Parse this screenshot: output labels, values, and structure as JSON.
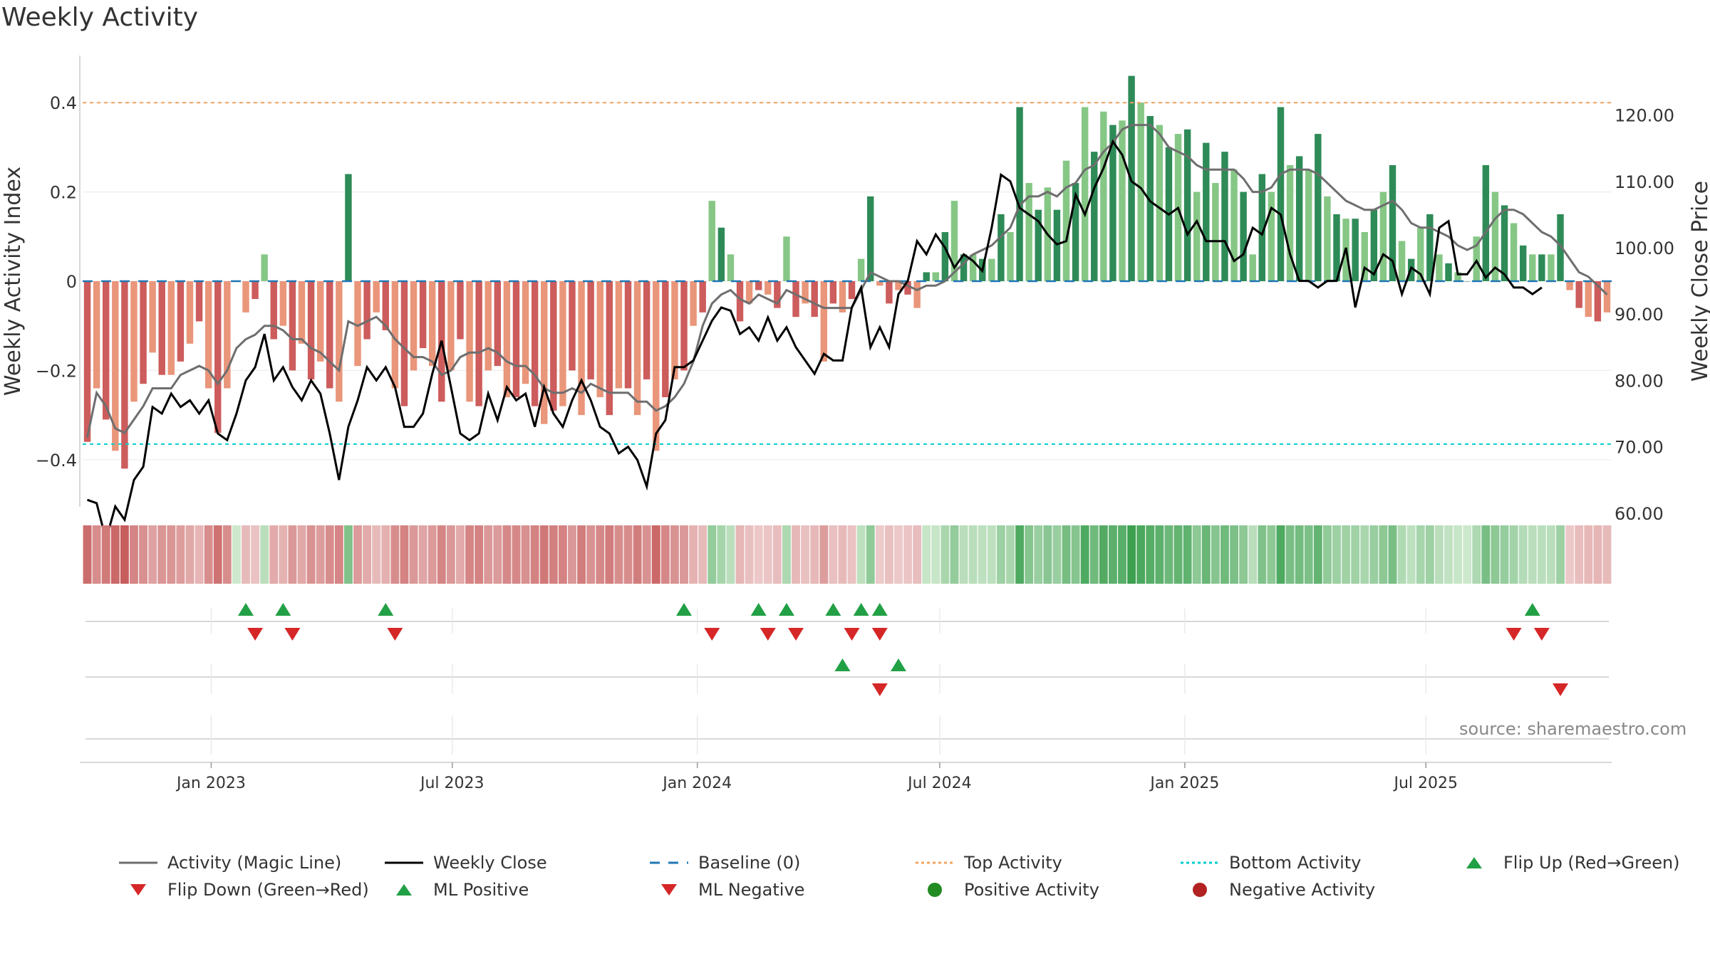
{
  "title": "Weekly Activity",
  "source": "source: sharemaestro.com",
  "colors": {
    "pos_dark": "#2e8b57",
    "pos_light": "#86c786",
    "neg_dark": "#cd5c5c",
    "neg_light": "#e9967a",
    "magic_line": "#6e6e6e",
    "close_line": "#000000",
    "baseline": "#1f77b4",
    "top_line": "#f4a460",
    "bottom_line": "#00ced1",
    "flip_up": "#22a045",
    "flip_down": "#d62728"
  },
  "chart_data": {
    "type": "bar",
    "x_start": "2022-09-30",
    "xlabel": "",
    "ylabel": "Weekly Activity Index",
    "y2label": "Weekly Close Price",
    "ylim": [
      -0.5,
      0.5
    ],
    "y2lim": [
      50,
      120
    ],
    "yticks": [
      {
        "v": 0.4,
        "label": "0.4"
      },
      {
        "v": 0.2,
        "label": "0.2"
      },
      {
        "v": 0,
        "label": "0"
      },
      {
        "v": -0.2,
        "label": "−0.2"
      },
      {
        "v": -0.4,
        "label": "−0.4"
      }
    ],
    "y2ticks": [
      {
        "v": 120,
        "label": "120.00"
      },
      {
        "v": 110,
        "label": "110.00"
      },
      {
        "v": 100,
        "label": "100.00"
      },
      {
        "v": 90,
        "label": "90.00"
      },
      {
        "v": 80,
        "label": "80.00"
      },
      {
        "v": 70,
        "label": "70.00"
      },
      {
        "v": 60,
        "label": "60.00"
      }
    ],
    "xticks": [
      {
        "date": "2023-01-01",
        "label": "Jan 2023"
      },
      {
        "date": "2023-07-01",
        "label": "Jul 2023"
      },
      {
        "date": "2024-01-01",
        "label": "Jan 2024"
      },
      {
        "date": "2024-07-01",
        "label": "Jul 2024"
      },
      {
        "date": "2025-01-01",
        "label": "Jan 2025"
      },
      {
        "date": "2025-07-01",
        "label": "Jul 2025"
      }
    ],
    "top_activity": 0.4,
    "bottom_activity": -0.365,
    "activity": [
      -0.36,
      -0.24,
      -0.31,
      -0.38,
      -0.42,
      -0.27,
      -0.23,
      -0.16,
      -0.21,
      -0.21,
      -0.18,
      -0.14,
      -0.09,
      -0.24,
      -0.34,
      -0.24,
      0.0,
      -0.07,
      -0.04,
      0.06,
      -0.13,
      -0.1,
      -0.2,
      -0.14,
      -0.22,
      -0.18,
      -0.24,
      -0.27,
      0.24,
      -0.19,
      -0.13,
      -0.07,
      -0.11,
      -0.24,
      -0.28,
      -0.2,
      -0.15,
      -0.19,
      -0.27,
      -0.2,
      -0.13,
      -0.27,
      -0.28,
      -0.2,
      -0.19,
      -0.26,
      -0.26,
      -0.23,
      -0.28,
      -0.32,
      -0.29,
      -0.28,
      -0.2,
      -0.3,
      -0.22,
      -0.26,
      -0.3,
      -0.24,
      -0.24,
      -0.3,
      -0.22,
      -0.38,
      -0.26,
      -0.22,
      -0.2,
      -0.1,
      -0.07,
      0.18,
      0.12,
      0.06,
      -0.09,
      -0.05,
      -0.02,
      -0.03,
      -0.06,
      0.1,
      -0.08,
      -0.05,
      -0.08,
      -0.18,
      -0.05,
      -0.07,
      -0.04,
      0.05,
      0.19,
      -0.01,
      -0.05,
      -0.02,
      -0.03,
      -0.06,
      0.02,
      0.02,
      0.11,
      0.18,
      0.06,
      0.06,
      0.05,
      0.05,
      0.15,
      0.11,
      0.39,
      0.22,
      0.16,
      0.21,
      0.16,
      0.27,
      0.22,
      0.39,
      0.29,
      0.38,
      0.35,
      0.36,
      0.46,
      0.4,
      0.37,
      0.35,
      0.3,
      0.33,
      0.34,
      0.2,
      0.31,
      0.22,
      0.29,
      0.25,
      0.2,
      0.06,
      0.24,
      0.2,
      0.39,
      0.26,
      0.28,
      0.25,
      0.33,
      0.19,
      0.15,
      0.14,
      0.14,
      0.11,
      0.16,
      0.2,
      0.26,
      0.09,
      0.05,
      0.12,
      0.15,
      0.06,
      0.04,
      0.02,
      0.0,
      0.1,
      0.26,
      0.2,
      0.17,
      0.13,
      0.08,
      0.06,
      0.06,
      0.06,
      0.15,
      -0.02,
      -0.06,
      -0.08,
      -0.09,
      -0.07
    ],
    "magic_line": [
      -0.35,
      -0.25,
      -0.28,
      -0.33,
      -0.34,
      -0.31,
      -0.28,
      -0.24,
      -0.24,
      -0.24,
      -0.21,
      -0.2,
      -0.19,
      -0.2,
      -0.23,
      -0.2,
      -0.15,
      -0.13,
      -0.12,
      -0.1,
      -0.1,
      -0.11,
      -0.13,
      -0.13,
      -0.15,
      -0.16,
      -0.18,
      -0.2,
      -0.09,
      -0.1,
      -0.09,
      -0.08,
      -0.1,
      -0.13,
      -0.15,
      -0.17,
      -0.17,
      -0.18,
      -0.21,
      -0.2,
      -0.17,
      -0.16,
      -0.16,
      -0.15,
      -0.16,
      -0.18,
      -0.19,
      -0.19,
      -0.21,
      -0.24,
      -0.25,
      -0.25,
      -0.24,
      -0.25,
      -0.23,
      -0.24,
      -0.25,
      -0.25,
      -0.25,
      -0.27,
      -0.27,
      -0.29,
      -0.28,
      -0.26,
      -0.23,
      -0.18,
      -0.1,
      -0.05,
      -0.03,
      -0.02,
      -0.04,
      -0.05,
      -0.03,
      -0.04,
      -0.05,
      -0.02,
      -0.03,
      -0.04,
      -0.05,
      -0.06,
      -0.06,
      -0.06,
      -0.06,
      -0.02,
      0.02,
      0.01,
      0.0,
      0.0,
      -0.01,
      -0.02,
      -0.01,
      -0.01,
      0.0,
      0.02,
      0.04,
      0.06,
      0.07,
      0.08,
      0.1,
      0.12,
      0.17,
      0.19,
      0.19,
      0.2,
      0.19,
      0.21,
      0.22,
      0.25,
      0.26,
      0.29,
      0.31,
      0.34,
      0.35,
      0.35,
      0.35,
      0.33,
      0.3,
      0.29,
      0.28,
      0.26,
      0.25,
      0.25,
      0.25,
      0.25,
      0.23,
      0.2,
      0.2,
      0.21,
      0.24,
      0.25,
      0.25,
      0.25,
      0.24,
      0.22,
      0.2,
      0.18,
      0.17,
      0.16,
      0.16,
      0.17,
      0.18,
      0.16,
      0.13,
      0.12,
      0.12,
      0.11,
      0.1,
      0.08,
      0.07,
      0.08,
      0.11,
      0.14,
      0.16,
      0.16,
      0.15,
      0.13,
      0.11,
      0.1,
      0.08,
      0.05,
      0.02,
      0.01,
      -0.01,
      -0.03
    ],
    "weekly_close": [
      62.0,
      61.5,
      56.0,
      61.0,
      59.0,
      65.0,
      67.0,
      76.0,
      75.0,
      78.0,
      76.0,
      77.0,
      75.0,
      77.0,
      72.0,
      71.0,
      75.0,
      80.0,
      82.0,
      87.0,
      80.0,
      82.0,
      79.0,
      77.0,
      80.0,
      78.0,
      72.0,
      65.0,
      73.0,
      77.0,
      82.0,
      80.0,
      82.0,
      79.0,
      73.0,
      73.0,
      75.0,
      81.0,
      86.0,
      79.0,
      72.0,
      71.0,
      72.0,
      78.0,
      74.0,
      79.0,
      77.0,
      78.0,
      73.0,
      79.0,
      75.0,
      73.0,
      77.0,
      80.0,
      77.0,
      73.0,
      72.0,
      69.0,
      70.0,
      68.0,
      64.0,
      72.0,
      74.0,
      82.0,
      82.0,
      83.0,
      86.0,
      89.0,
      91.0,
      90.5,
      87.0,
      88.0,
      86.0,
      89.5,
      86.0,
      88.0,
      85.0,
      83.0,
      81.0,
      84.0,
      83.0,
      83.0,
      91.0,
      94.0,
      85.0,
      88.0,
      85.0,
      93.0,
      95.0,
      101.0,
      99.0,
      102.0,
      100.0,
      97.0,
      99.0,
      98.0,
      96.5,
      103.0,
      111.0,
      110.0,
      106.0,
      105.0,
      104.0,
      102.0,
      100.5,
      101.0,
      108.0,
      105.0,
      109.0,
      112.0,
      116.0,
      114.0,
      110.0,
      109.0,
      107.0,
      106.0,
      105.0,
      106.0,
      102.0,
      104.0,
      101.0,
      101.0,
      101.0,
      98.0,
      99.0,
      103.0,
      102.0,
      106.0,
      105.0,
      99.0,
      95.0,
      95.0,
      94.0,
      95.0,
      95.0,
      100.0,
      91.0,
      97.0,
      96.0,
      99.0,
      98.0,
      93.0,
      97.0,
      96.0,
      93.0,
      103.0,
      104.0,
      96.0,
      96.0,
      98.0,
      95.5,
      97.0,
      96.0,
      94.0,
      94.0,
      93.0,
      94.0
    ]
  },
  "flip_markers": {
    "row1_up": [
      "2023-01-27",
      "2023-02-24",
      "2023-05-12",
      "2023-12-22",
      "2024-02-16",
      "2024-03-08",
      "2024-04-12",
      "2024-05-03",
      "2024-05-17",
      "2025-09-19"
    ],
    "row1_down": [
      "2023-02-03",
      "2023-03-03",
      "2023-05-19",
      "2024-01-12",
      "2024-02-23",
      "2024-03-15",
      "2024-04-26",
      "2024-05-17",
      "2025-09-05",
      "2025-09-26"
    ],
    "row2_up": [
      "2024-04-19",
      "2024-05-31"
    ],
    "row2_down": [
      "2024-05-17",
      "2025-10-10"
    ]
  },
  "legend": [
    {
      "label": "Activity (Magic Line)",
      "icon": "magic-line"
    },
    {
      "label": "Weekly Close",
      "icon": "close-line"
    },
    {
      "label": "Baseline (0)",
      "icon": "baseline-dash"
    },
    {
      "label": "Top Activity",
      "icon": "top-dots"
    },
    {
      "label": "Bottom Activity",
      "icon": "bottom-dots"
    },
    {
      "label": "Flip Up (Red→Green)",
      "icon": "triangle-up-green"
    },
    {
      "label": "Flip Down (Green→Red)",
      "icon": "triangle-down-red"
    },
    {
      "label": "ML Positive",
      "icon": "triangle-up-green"
    },
    {
      "label": "ML Negative",
      "icon": "triangle-down-red"
    },
    {
      "label": "Positive Activity",
      "icon": "circle-green"
    },
    {
      "label": "Negative Activity",
      "icon": "circle-red"
    }
  ]
}
